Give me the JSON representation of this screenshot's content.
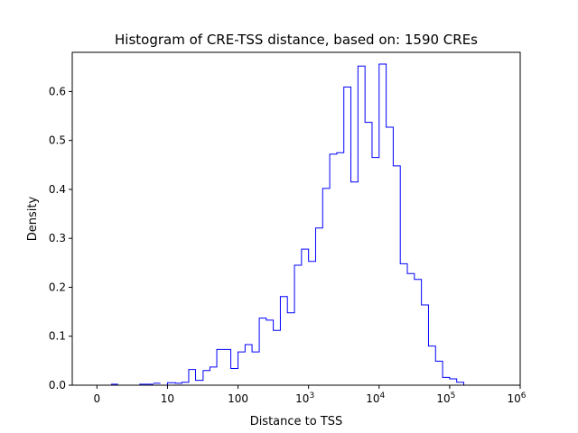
{
  "chart_data": {
    "type": "histogram-step",
    "title": "Histogram of CRE-TSS distance, based on: 1590 CREs",
    "xlabel": "Distance to TSS",
    "ylabel": "Density",
    "x_scale": "symlog",
    "x_linear_threshold": 10,
    "xlim": [
      -3.5,
      1000000
    ],
    "ylim": [
      0,
      0.68
    ],
    "grid": false,
    "line_color": "#0000ff",
    "x_ticks": [
      {
        "value": 0,
        "label": "0"
      },
      {
        "value": 10,
        "label": "10"
      },
      {
        "value": 100,
        "label": "100"
      },
      {
        "value": 1000,
        "base": "10",
        "exp": "3"
      },
      {
        "value": 10000,
        "base": "10",
        "exp": "4"
      },
      {
        "value": 100000,
        "base": "10",
        "exp": "5"
      },
      {
        "value": 1000000,
        "base": "10",
        "exp": "6"
      }
    ],
    "y_ticks": [
      {
        "value": 0.0,
        "label": "0.0"
      },
      {
        "value": 0.1,
        "label": "0.1"
      },
      {
        "value": 0.2,
        "label": "0.2"
      },
      {
        "value": 0.3,
        "label": "0.3"
      },
      {
        "value": 0.4,
        "label": "0.4"
      },
      {
        "value": 0.5,
        "label": "0.5"
      },
      {
        "value": 0.6,
        "label": "0.6"
      }
    ],
    "bin_edges": [
      0,
      2,
      4,
      6,
      8,
      10,
      13,
      16,
      20,
      25,
      32,
      40,
      50,
      63,
      79,
      100,
      126,
      158,
      200,
      251,
      316,
      398,
      501,
      631,
      794,
      1000,
      1259,
      1585,
      1995,
      2512,
      3162,
      3981,
      5012,
      6310,
      7943,
      10000,
      12589,
      15849,
      19953,
      25119,
      31623,
      39811,
      50119,
      63096,
      79433,
      100000,
      125893,
      158489,
      199526,
      251189,
      316228,
      398107
    ],
    "density": [
      0,
      0,
      0,
      0,
      0,
      0.005,
      0.004,
      0.006,
      0.032,
      0.01,
      0.03,
      0.037,
      0.073,
      0.073,
      0.034,
      0.068,
      0.083,
      0.068,
      0.137,
      0.133,
      0.112,
      0.181,
      0.148,
      0.245,
      0.278,
      0.253,
      0.321,
      0.402,
      0.472,
      0.475,
      0.609,
      0.415,
      0.652,
      0.537,
      0.465,
      0.656,
      0.527,
      0.448,
      0.248,
      0.228,
      0.216,
      0.164,
      0.08,
      0.049,
      0.016,
      0.013,
      0.006,
      0,
      0,
      0,
      0
    ],
    "near_zero_segments": [
      {
        "x0": 2,
        "x1": 3,
        "value": 0.002
      },
      {
        "x0": 6,
        "x1": 8,
        "value": 0.002
      },
      {
        "x0": 8,
        "x1": 9,
        "value": 0.004
      }
    ]
  }
}
